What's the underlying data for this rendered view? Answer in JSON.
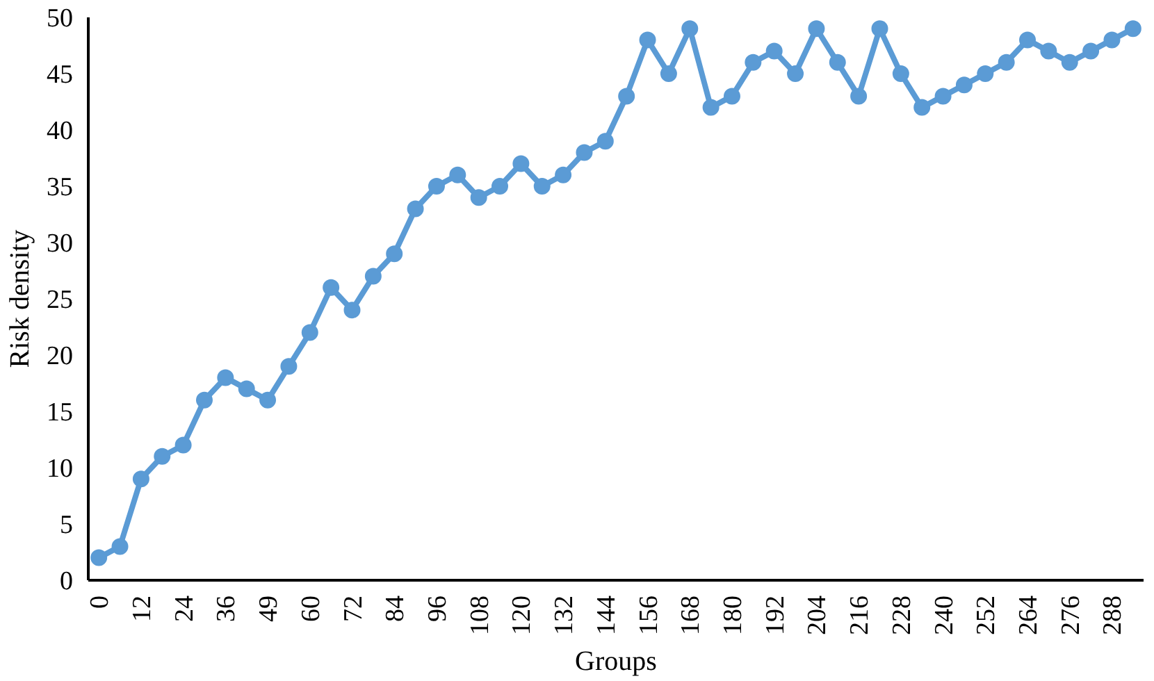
{
  "chart_data": {
    "type": "line",
    "xlabel": "Groups",
    "ylabel": "Risk density",
    "categories": [
      "0",
      null,
      "12",
      null,
      "24",
      null,
      "36",
      null,
      "49",
      null,
      "60",
      null,
      "72",
      null,
      "84",
      null,
      "96",
      null,
      "108",
      null,
      "120",
      null,
      "132",
      null,
      "144",
      null,
      "156",
      null,
      "168",
      null,
      "180",
      null,
      "192",
      null,
      "204",
      null,
      "216",
      null,
      "228",
      null,
      "240",
      null,
      "252",
      null,
      "264",
      null,
      "276",
      null,
      "288",
      null
    ],
    "series": [
      {
        "color": "#5b9bd5",
        "values": [
          2,
          3,
          9,
          11,
          12,
          16,
          18,
          17,
          16,
          19,
          22,
          26,
          24,
          27,
          29,
          33,
          35,
          36,
          34,
          35,
          37,
          35,
          36,
          38,
          39,
          43,
          48,
          45,
          49,
          42,
          43,
          46,
          47,
          45,
          49,
          46,
          43,
          49,
          45,
          42,
          43,
          44,
          45,
          46,
          48,
          47,
          46,
          47,
          48,
          49
        ]
      }
    ],
    "ylim": [
      0,
      50
    ],
    "yticks": [
      0,
      5,
      10,
      15,
      20,
      25,
      30,
      35,
      40,
      45,
      50
    ],
    "grid": false,
    "marker": "circle",
    "line_style": "solid"
  }
}
